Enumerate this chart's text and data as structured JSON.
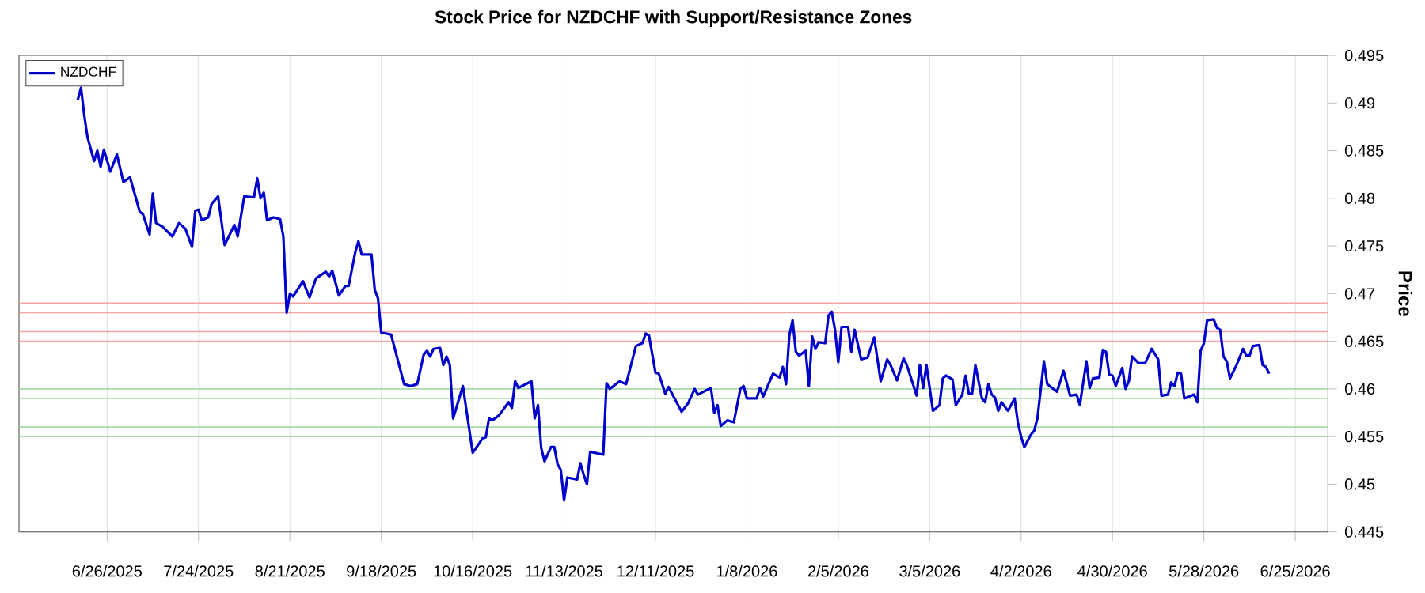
{
  "chart_data": {
    "type": "line",
    "title": "Stock Price for NZDCHF with Support/Resistance Zones",
    "ylabel": "Price",
    "xlim": [
      "2025-05-30",
      "2026-07-05"
    ],
    "ylim": [
      0.445,
      0.495
    ],
    "yticks": [
      0.445,
      0.45,
      0.455,
      0.46,
      0.465,
      0.47,
      0.475,
      0.48,
      0.485,
      0.49,
      0.495
    ],
    "xticks": [
      {
        "value": "2025-06-26",
        "label": "6/26/2025"
      },
      {
        "value": "2025-07-24",
        "label": "7/24/2025"
      },
      {
        "value": "2025-08-21",
        "label": "8/21/2025"
      },
      {
        "value": "2025-09-18",
        "label": "9/18/2025"
      },
      {
        "value": "2025-10-16",
        "label": "10/16/2025"
      },
      {
        "value": "2025-11-13",
        "label": "11/13/2025"
      },
      {
        "value": "2025-12-11",
        "label": "12/11/2025"
      },
      {
        "value": "2026-01-08",
        "label": "1/8/2026"
      },
      {
        "value": "2026-02-05",
        "label": "2/5/2026"
      },
      {
        "value": "2026-03-05",
        "label": "3/5/2026"
      },
      {
        "value": "2026-04-02",
        "label": "4/2/2026"
      },
      {
        "value": "2026-04-30",
        "label": "4/30/2026"
      },
      {
        "value": "2026-05-28",
        "label": "5/28/2026"
      },
      {
        "value": "2026-06-25",
        "label": "6/25/2026"
      }
    ],
    "grid": "x",
    "legend": "top left",
    "x": [
      "2025-06-17",
      "2025-06-18",
      "2025-06-19",
      "2025-06-20",
      "2025-06-22",
      "2025-06-23",
      "2025-06-24",
      "2025-06-25",
      "2025-06-27",
      "2025-06-29",
      "2025-07-01",
      "2025-07-03",
      "2025-07-06",
      "2025-07-07",
      "2025-07-09",
      "2025-07-10",
      "2025-07-11",
      "2025-07-13",
      "2025-07-16",
      "2025-07-18",
      "2025-07-20",
      "2025-07-22",
      "2025-07-23",
      "2025-07-24",
      "2025-07-25",
      "2025-07-27",
      "2025-07-28",
      "2025-07-30",
      "2025-08-01",
      "2025-08-04",
      "2025-08-05",
      "2025-08-07",
      "2025-08-10",
      "2025-08-11",
      "2025-08-12",
      "2025-08-13",
      "2025-08-14",
      "2025-08-16",
      "2025-08-18",
      "2025-08-19",
      "2025-08-20",
      "2025-08-21",
      "2025-08-22",
      "2025-08-25",
      "2025-08-27",
      "2025-08-29",
      "2025-09-01",
      "2025-09-02",
      "2025-09-03",
      "2025-09-05",
      "2025-09-07",
      "2025-09-08",
      "2025-09-10",
      "2025-09-11",
      "2025-09-12",
      "2025-09-15",
      "2025-09-16",
      "2025-09-17",
      "2025-09-18",
      "2025-09-21",
      "2025-09-25",
      "2025-09-27",
      "2025-09-29",
      "2025-10-01",
      "2025-10-02",
      "2025-10-03",
      "2025-10-04",
      "2025-10-06",
      "2025-10-07",
      "2025-10-08",
      "2025-10-09",
      "2025-10-10",
      "2025-10-13",
      "2025-10-16",
      "2025-10-19",
      "2025-10-20",
      "2025-10-21",
      "2025-10-22",
      "2025-10-24",
      "2025-10-27",
      "2025-10-28",
      "2025-10-29",
      "2025-10-30",
      "2025-11-03",
      "2025-11-04",
      "2025-11-05",
      "2025-11-06",
      "2025-11-07",
      "2025-11-09",
      "2025-11-10",
      "2025-11-11",
      "2025-11-12",
      "2025-11-13",
      "2025-11-14",
      "2025-11-17",
      "2025-11-18",
      "2025-11-19",
      "2025-11-20",
      "2025-11-21",
      "2025-11-25",
      "2025-11-26",
      "2025-11-27",
      "2025-11-30",
      "2025-12-02",
      "2025-12-05",
      "2025-12-07",
      "2025-12-08",
      "2025-12-09",
      "2025-12-11",
      "2025-12-12",
      "2025-12-14",
      "2025-12-15",
      "2025-12-19",
      "2025-12-21",
      "2025-12-23",
      "2025-12-24",
      "2025-12-28",
      "2025-12-29",
      "2025-12-30",
      "2025-12-31",
      "2026-01-02",
      "2026-01-04",
      "2026-01-06",
      "2026-01-07",
      "2026-01-08",
      "2026-01-11",
      "2026-01-12",
      "2026-01-13",
      "2026-01-16",
      "2026-01-18",
      "2026-01-19",
      "2026-01-20",
      "2026-01-21",
      "2026-01-22",
      "2026-01-23",
      "2026-01-24",
      "2026-01-26",
      "2026-01-27",
      "2026-01-28",
      "2026-01-29",
      "2026-01-30",
      "2026-02-01",
      "2026-02-02",
      "2026-02-03",
      "2026-02-04",
      "2026-02-05",
      "2026-02-06",
      "2026-02-08",
      "2026-02-09",
      "2026-02-10",
      "2026-02-12",
      "2026-02-14",
      "2026-02-16",
      "2026-02-18",
      "2026-02-20",
      "2026-02-21",
      "2026-02-23",
      "2026-02-25",
      "2026-02-26",
      "2026-03-01",
      "2026-03-02",
      "2026-03-03",
      "2026-03-04",
      "2026-03-06",
      "2026-03-08",
      "2026-03-09",
      "2026-03-10",
      "2026-03-12",
      "2026-03-13",
      "2026-03-15",
      "2026-03-16",
      "2026-03-17",
      "2026-03-18",
      "2026-03-19",
      "2026-03-21",
      "2026-03-22",
      "2026-03-23",
      "2026-03-24",
      "2026-03-25",
      "2026-03-26",
      "2026-03-27",
      "2026-03-29",
      "2026-03-31",
      "2026-04-01",
      "2026-04-02",
      "2026-04-03",
      "2026-04-05",
      "2026-04-06",
      "2026-04-07",
      "2026-04-09",
      "2026-04-10",
      "2026-04-13",
      "2026-04-15",
      "2026-04-17",
      "2026-04-19",
      "2026-04-20",
      "2026-04-22",
      "2026-04-23",
      "2026-04-24",
      "2026-04-26",
      "2026-04-27",
      "2026-04-28",
      "2026-04-29",
      "2026-04-30",
      "2026-05-01",
      "2026-05-03",
      "2026-05-04",
      "2026-05-05",
      "2026-05-06",
      "2026-05-08",
      "2026-05-10",
      "2026-05-12",
      "2026-05-14",
      "2026-05-15",
      "2026-05-17",
      "2026-05-18",
      "2026-05-19",
      "2026-05-20",
      "2026-05-21",
      "2026-05-22",
      "2026-05-25",
      "2026-05-26",
      "2026-05-27",
      "2026-05-28",
      "2026-05-29",
      "2026-05-31",
      "2026-06-01",
      "2026-06-02",
      "2026-06-03",
      "2026-06-04",
      "2026-06-05",
      "2026-06-07",
      "2026-06-09",
      "2026-06-10",
      "2026-06-11",
      "2026-06-12",
      "2026-06-14",
      "2026-06-15",
      "2026-06-16",
      "2026-06-17"
    ],
    "series": [
      {
        "name": "NZDCHF",
        "color": "#0000cc",
        "values": [
          0.4903,
          0.4916,
          0.4887,
          0.4864,
          0.4839,
          0.485,
          0.4833,
          0.4851,
          0.4828,
          0.4846,
          0.4817,
          0.4822,
          0.4786,
          0.4783,
          0.4762,
          0.4805,
          0.4774,
          0.477,
          0.476,
          0.4774,
          0.4768,
          0.4749,
          0.4787,
          0.4788,
          0.4777,
          0.478,
          0.4794,
          0.4802,
          0.4751,
          0.4772,
          0.476,
          0.4802,
          0.4801,
          0.4821,
          0.48,
          0.4806,
          0.4777,
          0.478,
          0.4778,
          0.476,
          0.468,
          0.47,
          0.4697,
          0.4713,
          0.4696,
          0.4716,
          0.4723,
          0.4718,
          0.4724,
          0.4698,
          0.4708,
          0.4708,
          0.4743,
          0.4755,
          0.4741,
          0.4741,
          0.4704,
          0.4695,
          0.4659,
          0.4657,
          0.4605,
          0.4603,
          0.4605,
          0.4636,
          0.464,
          0.4634,
          0.4642,
          0.4643,
          0.4625,
          0.4634,
          0.4625,
          0.4569,
          0.4603,
          0.4533,
          0.4548,
          0.4549,
          0.4569,
          0.4567,
          0.4572,
          0.4586,
          0.458,
          0.4608,
          0.4601,
          0.4608,
          0.4569,
          0.4583,
          0.4538,
          0.4524,
          0.4539,
          0.4539,
          0.4521,
          0.4515,
          0.4483,
          0.4507,
          0.4505,
          0.4522,
          0.451,
          0.45,
          0.4534,
          0.4531,
          0.4606,
          0.46,
          0.4608,
          0.4605,
          0.4645,
          0.4648,
          0.4658,
          0.4656,
          0.4617,
          0.4616,
          0.4595,
          0.4602,
          0.4576,
          0.4585,
          0.46,
          0.4594,
          0.4601,
          0.4575,
          0.4583,
          0.4561,
          0.4567,
          0.4565,
          0.46,
          0.4603,
          0.459,
          0.459,
          0.4601,
          0.4592,
          0.4616,
          0.4612,
          0.4623,
          0.4605,
          0.4656,
          0.4672,
          0.4639,
          0.4635,
          0.464,
          0.4603,
          0.4655,
          0.4642,
          0.4649,
          0.4648,
          0.4677,
          0.4681,
          0.4662,
          0.4628,
          0.4665,
          0.4665,
          0.4639,
          0.4662,
          0.4631,
          0.4633,
          0.4654,
          0.4608,
          0.4631,
          0.4625,
          0.4609,
          0.4632,
          0.4625,
          0.4593,
          0.4625,
          0.4601,
          0.4625,
          0.4577,
          0.4583,
          0.4611,
          0.4614,
          0.461,
          0.4583,
          0.4594,
          0.4614,
          0.4595,
          0.4595,
          0.4625,
          0.459,
          0.4586,
          0.4605,
          0.4594,
          0.4591,
          0.4577,
          0.4586,
          0.4577,
          0.459,
          0.4565,
          0.455,
          0.4539,
          0.4552,
          0.4556,
          0.4569,
          0.4629,
          0.4605,
          0.4597,
          0.4619,
          0.4593,
          0.4594,
          0.4583,
          0.4629,
          0.4601,
          0.4611,
          0.4612,
          0.464,
          0.4639,
          0.4615,
          0.4614,
          0.4603,
          0.4622,
          0.46,
          0.4608,
          0.4634,
          0.4627,
          0.4627,
          0.4642,
          0.4631,
          0.4593,
          0.4594,
          0.4607,
          0.4603,
          0.4617,
          0.4616,
          0.459,
          0.4594,
          0.4586,
          0.464,
          0.4648,
          0.4672,
          0.4673,
          0.4664,
          0.4662,
          0.4634,
          0.4629,
          0.4611,
          0.4625,
          0.4642,
          0.4635,
          0.4635,
          0.4645,
          0.4646,
          0.4625,
          0.4623,
          0.4616
        ]
      }
    ],
    "ref_lines": [
      {
        "axis": "y",
        "value": 0.469,
        "color": "#f4a4a4"
      },
      {
        "axis": "y",
        "value": 0.468,
        "color": "#f4a4a4"
      },
      {
        "axis": "y",
        "value": 0.466,
        "color": "#f4a4a4"
      },
      {
        "axis": "y",
        "value": 0.465,
        "color": "#f4a4a4"
      },
      {
        "axis": "y",
        "value": 0.46,
        "color": "#a8d8a8"
      },
      {
        "axis": "y",
        "value": 0.459,
        "color": "#a8d8a8"
      },
      {
        "axis": "y",
        "value": 0.456,
        "color": "#a8d8a8"
      },
      {
        "axis": "y",
        "value": 0.455,
        "color": "#a8d8a8"
      }
    ]
  }
}
